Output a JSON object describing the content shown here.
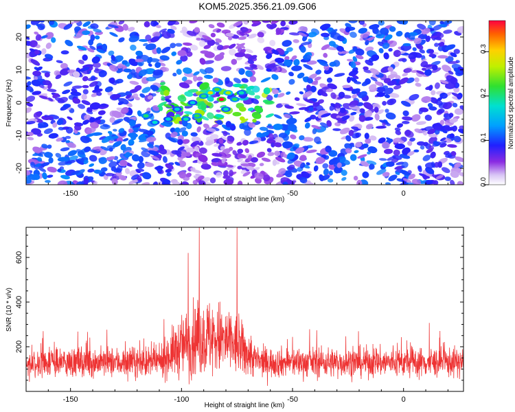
{
  "title": "KOM5.2025.356.21.09.G06",
  "chart_data": [
    {
      "type": "heatmap",
      "xlabel": "Height of straight line (km)",
      "ylabel": "Frequency (Hz)",
      "xlim": [
        -170,
        27
      ],
      "ylim": [
        -25,
        25
      ],
      "xticks": [
        -150,
        -100,
        -50,
        0
      ],
      "xtick_labels": [
        "-150",
        "-100",
        "-50",
        "0"
      ],
      "yticks": [
        -20,
        -10,
        0,
        10,
        20
      ],
      "ytick_labels": [
        "-20",
        "-10",
        "0",
        "10",
        "20"
      ],
      "colorbar": {
        "label": "Normalized spectral amplitude",
        "range": [
          0,
          0.37
        ],
        "ticks": [
          0.0,
          0.1,
          0.2,
          0.3
        ],
        "tick_labels": [
          "0.0",
          "0.1",
          "0.2",
          "0.3"
        ]
      },
      "peak": {
        "x": -82,
        "y": 1,
        "value": 0.37
      }
    },
    {
      "type": "line",
      "xlabel": "Height of straight line (km)",
      "ylabel": "SNR (10 * v/v)",
      "xlim": [
        -170,
        27
      ],
      "ylim": [
        0,
        735
      ],
      "xticks": [
        -150,
        -100,
        -50,
        0
      ],
      "xtick_labels": [
        "-150",
        "-100",
        "-50",
        "0"
      ],
      "yticks": [
        200,
        400,
        600
      ],
      "ytick_labels": [
        "200",
        "400",
        "600"
      ],
      "color": "#ee3333",
      "baseline_mean": 130,
      "noise_max": 350,
      "peak_region": [
        -110,
        -65
      ],
      "peaks": [
        {
          "x": -97,
          "y": 620
        },
        {
          "x": -92,
          "y": 735
        },
        {
          "x": -75,
          "y": 735
        }
      ]
    }
  ]
}
